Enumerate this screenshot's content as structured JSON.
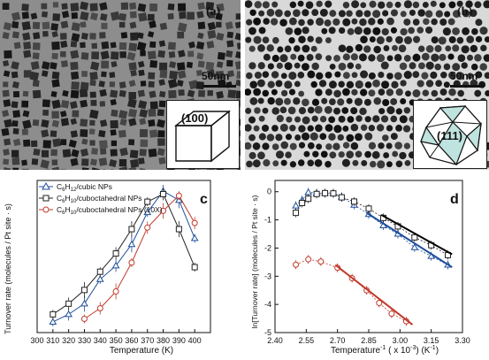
{
  "panels": {
    "a": {
      "label": "(a)",
      "scale_bar": "50nm",
      "facet": "(100)"
    },
    "b": {
      "label": "(b)",
      "scale_bar": "50nm",
      "facet": "(111)"
    }
  },
  "chart_data": [
    {
      "type": "line",
      "panel_label": "c",
      "xlabel": "Temperature (K)",
      "ylabel": "Turnover rate (molecules / Pt site · s)",
      "xlim": [
        300,
        410
      ],
      "ylim": [
        0,
        1.0
      ],
      "x_ticks": [
        300,
        310,
        320,
        330,
        340,
        350,
        360,
        370,
        380,
        390,
        400
      ],
      "legend_position": "top-left",
      "series": [
        {
          "name": "C6H12/cubic NPs",
          "color": "#1f4e9a",
          "marker": "triangle",
          "x": [
            310,
            320,
            330,
            340,
            350,
            360,
            370,
            380,
            390,
            400
          ],
          "y": [
            0.07,
            0.12,
            0.19,
            0.35,
            0.44,
            0.58,
            0.79,
            0.93,
            0.87,
            0.62
          ]
        },
        {
          "name": "C6H10/cuboctahedral NPs",
          "color": "#222222",
          "marker": "square",
          "x": [
            310,
            320,
            330,
            340,
            350,
            360,
            370,
            380,
            390,
            400
          ],
          "y": [
            0.12,
            0.19,
            0.28,
            0.4,
            0.52,
            0.68,
            0.86,
            0.91,
            0.68,
            0.43
          ]
        },
        {
          "name": "C6H10/cuboctahedral NPs (10X)",
          "color": "#c0392b",
          "marker": "circle",
          "x": [
            330,
            340,
            350,
            360,
            370,
            380,
            390,
            400
          ],
          "y": [
            0.09,
            0.16,
            0.27,
            0.46,
            0.69,
            0.8,
            0.9,
            0.72
          ]
        }
      ],
      "legend_labels": {
        "s1": {
          "a": "C",
          "a_sub": "6",
          "b": "H",
          "b_sub": "12",
          "c": "/cubic NPs"
        },
        "s2": {
          "a": "C",
          "a_sub": "6",
          "b": "H",
          "b_sub": "10",
          "c": "/cuboctahedral NPs"
        },
        "s3": {
          "a": "C",
          "a_sub": "6",
          "b": "H",
          "b_sub": "10",
          "c": "/cuboctahedral NPs (10X)"
        }
      }
    },
    {
      "type": "line",
      "panel_label": "d",
      "xlabel": "Temperature",
      "xlabel_sup": "-1",
      "xlabel_rest": " ( x 10",
      "xlabel_sup2": "-3",
      "xlabel_units": ") (K",
      "xlabel_sup3": "-1",
      "xlabel_end": ")",
      "ylabel": "ln[Turnover rate] (molecules / Pt site · s)",
      "xlim": [
        2.4,
        3.3
      ],
      "ylim": [
        -5,
        0.4
      ],
      "x_ticks": [
        "2.40",
        "2.55",
        "2.70",
        "2.85",
        "3.00",
        "3.15",
        "3.30"
      ],
      "y_ticks": [
        0,
        -1,
        -2,
        -3,
        -4,
        -5
      ],
      "series": [
        {
          "name": "cubic",
          "color": "#1f4e9a",
          "marker": "triangle",
          "x": [
            2.5,
            2.53,
            2.56,
            2.6,
            2.64,
            2.68,
            2.72,
            2.78,
            2.85,
            2.92,
            2.99,
            3.07,
            3.15,
            3.23
          ],
          "y": [
            -0.5,
            -0.3,
            -0.02,
            -0.05,
            -0.05,
            -0.05,
            -0.18,
            -0.47,
            -0.8,
            -1.2,
            -1.5,
            -1.98,
            -2.29,
            -2.6
          ]
        },
        {
          "name": "cuboctahedral",
          "color": "#222222",
          "marker": "square",
          "x": [
            2.5,
            2.53,
            2.56,
            2.6,
            2.64,
            2.68,
            2.72,
            2.78,
            2.85,
            2.92,
            2.99,
            3.07,
            3.15,
            3.23
          ],
          "y": [
            -0.75,
            -0.4,
            -0.25,
            -0.08,
            -0.05,
            -0.06,
            -0.2,
            -0.35,
            -0.6,
            -0.93,
            -1.23,
            -1.62,
            -1.9,
            -2.25
          ]
        },
        {
          "name": "cuboctahedral (10X)",
          "color": "#c0392b",
          "marker": "circle",
          "x": [
            2.5,
            2.56,
            2.62,
            2.7,
            2.77,
            2.84,
            2.9,
            2.96,
            3.03
          ],
          "y": [
            -2.59,
            -2.4,
            -2.48,
            -2.7,
            -3.07,
            -3.5,
            -3.95,
            -4.33,
            -4.6
          ]
        }
      ],
      "fit_lines": [
        {
          "color": "#000000",
          "x": [
            2.91,
            3.25
          ],
          "y": [
            -0.82,
            -2.22
          ]
        },
        {
          "color": "#1f4e9a",
          "x": [
            2.84,
            3.25
          ],
          "y": [
            -0.75,
            -2.68
          ]
        },
        {
          "color": "#c0392b",
          "x": [
            2.69,
            3.06
          ],
          "y": [
            -2.6,
            -4.72
          ]
        }
      ]
    }
  ]
}
